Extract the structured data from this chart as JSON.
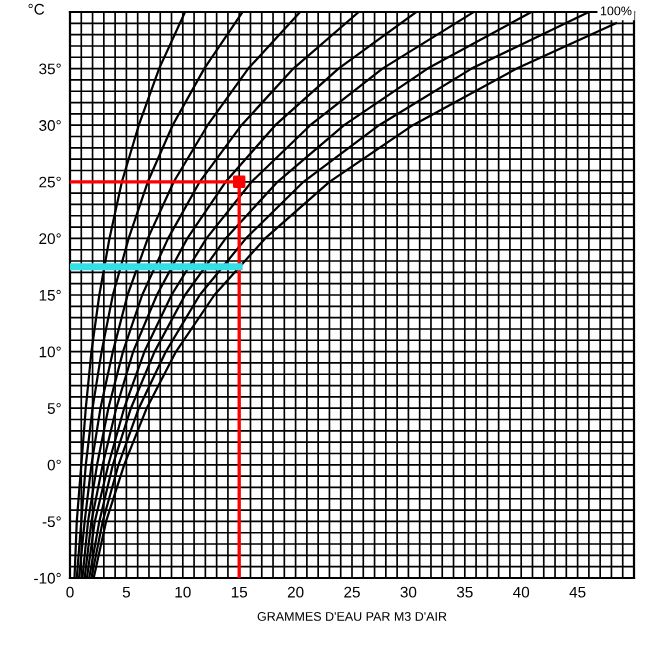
{
  "chart_data": {
    "type": "line",
    "xlabel": "GRAMMES D'EAU PAR M3 D'AIR",
    "ylabel": "°C",
    "xlim": [
      0,
      50
    ],
    "ylim": [
      -10,
      40
    ],
    "xticks": [
      0,
      {
        "value": 1,
        "label": null
      },
      {
        "value": 2,
        "label": null
      },
      {
        "value": 3,
        "label": null
      },
      {
        "value": 4,
        "label": null
      },
      5,
      {
        "value": 6,
        "label": null
      },
      {
        "value": 7,
        "label": null
      },
      {
        "value": 8,
        "label": null
      },
      {
        "value": 9,
        "label": null
      },
      10,
      {
        "value": 11,
        "label": null
      },
      {
        "value": 12,
        "label": null
      },
      {
        "value": 13,
        "label": null
      },
      {
        "value": 14,
        "label": null
      },
      15,
      {
        "value": 16,
        "label": null
      },
      {
        "value": 17,
        "label": null
      },
      {
        "value": 18,
        "label": null
      },
      {
        "value": 19,
        "label": null
      },
      20,
      {
        "value": 21,
        "label": null
      },
      {
        "value": 22,
        "label": null
      },
      {
        "value": 23,
        "label": null
      },
      {
        "value": 24,
        "label": null
      },
      25,
      {
        "value": 26,
        "label": null
      },
      {
        "value": 27,
        "label": null
      },
      {
        "value": 28,
        "label": null
      },
      {
        "value": 29,
        "label": null
      },
      30,
      {
        "value": 31,
        "label": null
      },
      {
        "value": 32,
        "label": null
      },
      {
        "value": 33,
        "label": null
      },
      {
        "value": 34,
        "label": null
      },
      35,
      {
        "value": 36,
        "label": null
      },
      {
        "value": 37,
        "label": null
      },
      {
        "value": 38,
        "label": null
      },
      {
        "value": 39,
        "label": null
      },
      40,
      {
        "value": 41,
        "label": null
      },
      {
        "value": 42,
        "label": null
      },
      {
        "value": 43,
        "label": null
      },
      {
        "value": 44,
        "label": null
      },
      45,
      {
        "value": 46,
        "label": null
      },
      {
        "value": 47,
        "label": null
      },
      {
        "value": 48,
        "label": null
      },
      {
        "value": 49,
        "label": null
      },
      {
        "value": 50,
        "label": null
      }
    ],
    "yticks": [
      {
        "value": -10,
        "label": "-10°"
      },
      {
        "value": -9,
        "label": null
      },
      {
        "value": -8,
        "label": null
      },
      {
        "value": -7,
        "label": null
      },
      {
        "value": -6,
        "label": null
      },
      {
        "value": -5,
        "label": "-5°"
      },
      {
        "value": -4,
        "label": null
      },
      {
        "value": -3,
        "label": null
      },
      {
        "value": -2,
        "label": null
      },
      {
        "value": -1,
        "label": null
      },
      {
        "value": 0,
        "label": "0°"
      },
      {
        "value": 1,
        "label": null
      },
      {
        "value": 2,
        "label": null
      },
      {
        "value": 3,
        "label": null
      },
      {
        "value": 4,
        "label": null
      },
      {
        "value": 5,
        "label": "5°"
      },
      {
        "value": 6,
        "label": null
      },
      {
        "value": 7,
        "label": null
      },
      {
        "value": 8,
        "label": null
      },
      {
        "value": 9,
        "label": null
      },
      {
        "value": 10,
        "label": "10°"
      },
      {
        "value": 11,
        "label": null
      },
      {
        "value": 12,
        "label": null
      },
      {
        "value": 13,
        "label": null
      },
      {
        "value": 14,
        "label": null
      },
      {
        "value": 15,
        "label": "15°"
      },
      {
        "value": 16,
        "label": null
      },
      {
        "value": 17,
        "label": null
      },
      {
        "value": 18,
        "label": null
      },
      {
        "value": 19,
        "label": null
      },
      {
        "value": 20,
        "label": "20°"
      },
      {
        "value": 21,
        "label": null
      },
      {
        "value": 22,
        "label": null
      },
      {
        "value": 23,
        "label": null
      },
      {
        "value": 24,
        "label": null
      },
      {
        "value": 25,
        "label": "25°"
      },
      {
        "value": 26,
        "label": null
      },
      {
        "value": 27,
        "label": null
      },
      {
        "value": 28,
        "label": null
      },
      {
        "value": 29,
        "label": null
      },
      {
        "value": 30,
        "label": "30°"
      },
      {
        "value": 31,
        "label": null
      },
      {
        "value": 32,
        "label": null
      },
      {
        "value": 33,
        "label": null
      },
      {
        "value": 34,
        "label": null
      },
      {
        "value": 35,
        "label": "35°"
      },
      {
        "value": 36,
        "label": null
      },
      {
        "value": 37,
        "label": null
      },
      {
        "value": 38,
        "label": null
      },
      {
        "value": 39,
        "label": null
      },
      {
        "value": 40,
        "label": null
      }
    ],
    "grid": true,
    "series": [
      {
        "color": "#000000",
        "x": [
          0.4,
          0.6,
          1.0,
          1.4,
          1.9,
          2.6,
          3.5,
          4.6,
          6.1,
          7.9,
          10.2
        ],
        "values": [
          -10,
          -5,
          0,
          5,
          10,
          15,
          20,
          25,
          30,
          35,
          40
        ]
      },
      {
        "color": "#000000",
        "x": [
          0.6,
          1.0,
          1.4,
          2.0,
          2.8,
          3.8,
          5.2,
          6.9,
          9.1,
          11.9,
          15.3
        ],
        "values": [
          -10,
          -5,
          0,
          5,
          10,
          15,
          20,
          25,
          30,
          35,
          40
        ]
      },
      {
        "color": "#000000",
        "x": [
          0.8,
          1.3,
          1.9,
          2.7,
          3.8,
          5.1,
          6.9,
          9.2,
          12.2,
          15.8,
          20.4
        ],
        "values": [
          -10,
          -5,
          0,
          5,
          10,
          15,
          20,
          25,
          30,
          35,
          40
        ]
      },
      {
        "color": "#000000",
        "x": [
          1.1,
          1.6,
          2.4,
          3.4,
          4.7,
          6.4,
          8.7,
          11.5,
          15.2,
          19.8,
          25.6
        ],
        "values": [
          -10,
          -5,
          0,
          5,
          10,
          15,
          20,
          25,
          30,
          35,
          40
        ]
      },
      {
        "color": "#000000",
        "x": [
          1.3,
          1.9,
          2.9,
          4.1,
          5.6,
          7.7,
          10.4,
          13.8,
          18.2,
          23.8,
          30.7
        ],
        "values": [
          -10,
          -5,
          0,
          5,
          10,
          15,
          20,
          25,
          30,
          35,
          40
        ]
      },
      {
        "color": "#000000",
        "x": [
          1.5,
          2.2,
          3.4,
          4.8,
          6.6,
          9.0,
          12.1,
          16.1,
          21.3,
          27.7,
          35.8
        ],
        "values": [
          -10,
          -5,
          0,
          5,
          10,
          15,
          20,
          25,
          30,
          35,
          40
        ]
      },
      {
        "color": "#000000",
        "x": [
          1.7,
          2.6,
          3.8,
          5.4,
          7.5,
          10.2,
          13.8,
          18.4,
          24.3,
          31.7,
          40.9
        ],
        "values": [
          -10,
          -5,
          0,
          5,
          10,
          15,
          20,
          25,
          30,
          35,
          40
        ]
      },
      {
        "color": "#000000",
        "x": [
          1.9,
          2.9,
          4.3,
          6.1,
          8.5,
          11.5,
          15.6,
          20.7,
          27.4,
          35.6,
          46.0
        ],
        "values": [
          -10,
          -5,
          0,
          5,
          10,
          15,
          20,
          25,
          30,
          35,
          40
        ]
      },
      {
        "name": "100%",
        "color": "#000000",
        "x": [
          2.1,
          3.2,
          4.8,
          6.8,
          9.4,
          12.8,
          17.3,
          23.0,
          30.4,
          39.6,
          48.4
        ],
        "values": [
          -10,
          -5,
          0,
          5,
          10,
          15,
          20,
          25,
          30,
          35,
          39
        ]
      },
      {
        "color": "#ff0000",
        "x": [
          0,
          15,
          15
        ],
        "values": [
          25,
          25,
          -10
        ]
      },
      {
        "color": "#33e0e8",
        "x": [
          0,
          15
        ],
        "values": [
          17.5,
          17.5
        ]
      },
      {
        "type": "scatter",
        "color": "#ff0000",
        "marker": "square",
        "x": [
          15
        ],
        "values": [
          25
        ]
      }
    ]
  }
}
